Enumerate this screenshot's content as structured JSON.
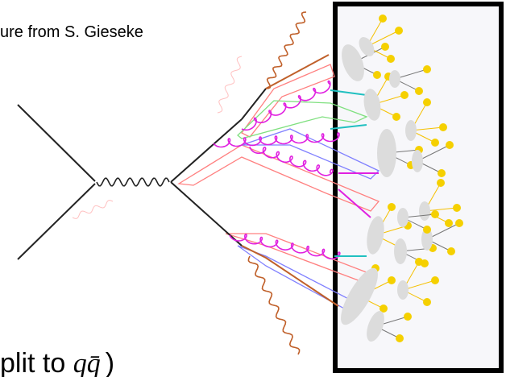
{
  "caption": {
    "top": "ure from S. Gieseke",
    "bottom": "plit to ",
    "bottom_math": "qq̄",
    "bottom_end": ")"
  }
}
